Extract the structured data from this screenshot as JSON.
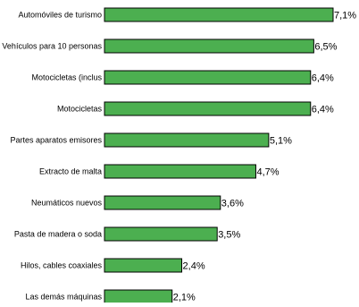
{
  "chart_data": {
    "type": "bar",
    "orientation": "horizontal",
    "categories": [
      "Automóviles de turismo",
      "Vehículos para 10 personas",
      "Motocicletas (inclus",
      "Motocicletas",
      "Partes aparatos emisores",
      "Extracto de malta",
      "Neumáticos nuevos",
      "Pasta de madera o soda",
      "Hilos, cables coaxiales",
      "Las demás máquinas"
    ],
    "values": [
      7.1,
      6.5,
      6.4,
      6.4,
      5.1,
      4.7,
      3.6,
      3.5,
      2.4,
      2.1
    ],
    "value_labels": [
      "7,1%",
      "6,5%",
      "6,4%",
      "6,4%",
      "5,1%",
      "4,7%",
      "3,6%",
      "3,5%",
      "2,4%",
      "2,1%"
    ],
    "xlim": [
      0,
      7.1
    ],
    "grid": false,
    "bar_color": "#4caf50",
    "bar_edge_color": "#000000"
  }
}
